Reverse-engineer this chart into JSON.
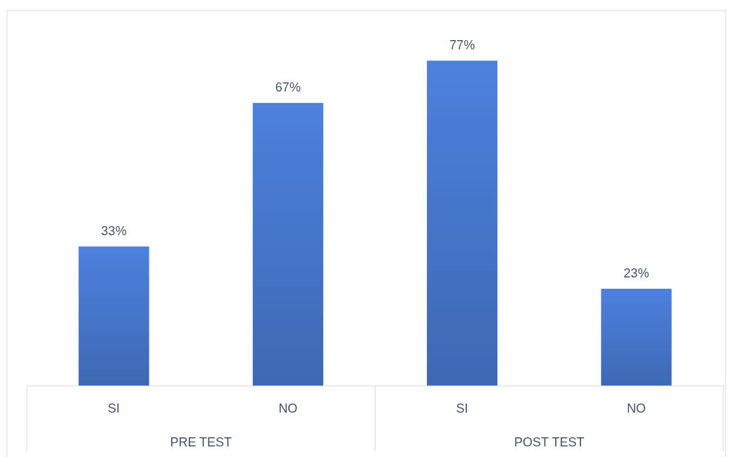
{
  "chart_data": {
    "type": "bar",
    "categories": [
      "SI",
      "NO",
      "SI",
      "NO"
    ],
    "values": [
      33,
      67,
      77,
      23
    ],
    "value_labels": [
      "33%",
      "67%",
      "77%",
      "23%"
    ],
    "color": "#4472c4",
    "annotations": [
      "PRE TEST",
      "POST TEST"
    ],
    "grid": false
  }
}
